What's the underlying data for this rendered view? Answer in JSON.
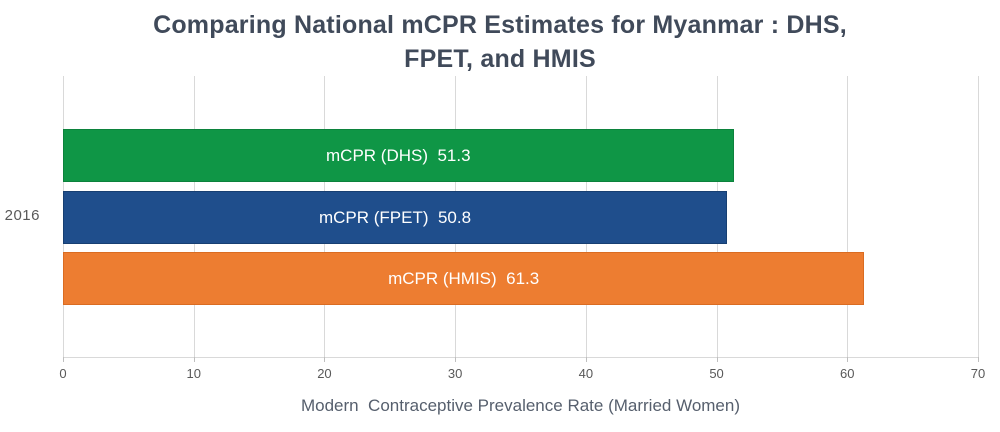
{
  "chart_data": {
    "type": "bar",
    "orientation": "horizontal",
    "title": "Comparing National mCPR Estimates for Myanmar : DHS,\nFPET, and  HMIS",
    "xlabel": "Modern  Contraceptive Prevalence Rate (Married Women)",
    "categories": [
      "2016"
    ],
    "series": [
      {
        "name": "mCPR (DHS)",
        "value": 51.3,
        "bar_label": "mCPR (DHS)  51.3",
        "color": "#0F9646",
        "border_color": "#0C823C"
      },
      {
        "name": "mCPR (FPET)",
        "value": 50.8,
        "bar_label": "mCPR (FPET)  50.8",
        "color": "#1F4E8C",
        "border_color": "#173F72"
      },
      {
        "name": "mCPR (HMIS)",
        "value": 61.3,
        "bar_label": "mCPR (HMIS)  61.3",
        "color": "#ED7D31",
        "border_color": "#DA6C22"
      }
    ],
    "xlim": [
      0,
      70
    ],
    "x_ticks": [
      0,
      10,
      20,
      30,
      40,
      50,
      60,
      70
    ],
    "grid": true,
    "legend": false
  },
  "colors": {
    "title_text": "#404A5A",
    "axis_text": "#595959",
    "axis_title_text": "#565F6D",
    "gridline": "#D9D9D9",
    "tick_mark": "#BFBFBF",
    "bar_label_text": "#FFFFFF",
    "background": "#FFFFFF"
  }
}
